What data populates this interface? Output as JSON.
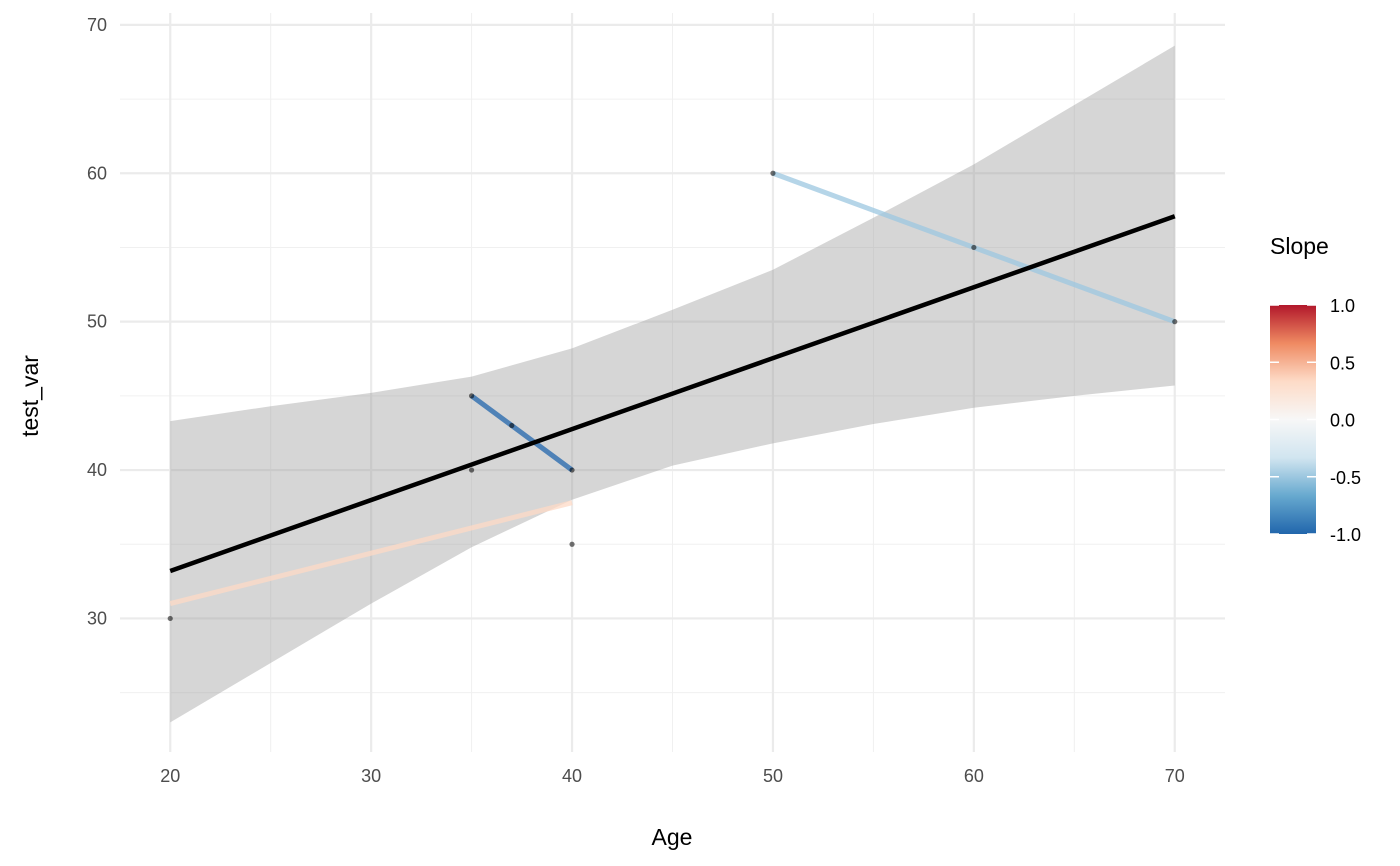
{
  "chart_data": {
    "type": "scatter",
    "xlabel": "Age",
    "ylabel": "test_var",
    "xlim": [
      17.5,
      72.5
    ],
    "ylim": [
      21,
      70.8
    ],
    "x_ticks": [
      20,
      30,
      40,
      50,
      60,
      70
    ],
    "y_ticks": [
      30,
      40,
      50,
      60,
      70
    ],
    "grid": true,
    "points": [
      {
        "x": 20,
        "y": 30
      },
      {
        "x": 35,
        "y": 45
      },
      {
        "x": 35,
        "y": 40
      },
      {
        "x": 37,
        "y": 43
      },
      {
        "x": 40,
        "y": 40
      },
      {
        "x": 40,
        "y": 35
      },
      {
        "x": 50,
        "y": 60
      },
      {
        "x": 60,
        "y": 55
      },
      {
        "x": 70,
        "y": 50
      }
    ],
    "group_lines": [
      {
        "x": [
          20,
          40
        ],
        "y": [
          31.0,
          37.8
        ],
        "slope": 0.34
      },
      {
        "x": [
          35,
          40
        ],
        "y": [
          45,
          40
        ],
        "slope": -1.0
      },
      {
        "x": [
          50,
          70
        ],
        "y": [
          60,
          50
        ],
        "slope": -0.5
      }
    ],
    "overall_fit": {
      "x": [
        20,
        70
      ],
      "y": [
        33.2,
        57.1
      ],
      "ci_x": [
        20,
        25,
        30,
        35,
        40,
        45,
        50,
        55,
        60,
        65,
        70
      ],
      "ci_lower": [
        23.0,
        27.0,
        31.0,
        34.8,
        38.0,
        40.3,
        41.8,
        43.1,
        44.2,
        45.0,
        45.7
      ],
      "ci_upper": [
        43.3,
        44.3,
        45.2,
        46.3,
        48.2,
        50.8,
        53.5,
        57.0,
        60.6,
        64.6,
        68.6
      ]
    },
    "legend": {
      "title": "Slope",
      "position": "right",
      "range": [
        -1.0,
        1.0
      ],
      "ticks": [
        "1.0",
        "0.5",
        "0.0",
        "-0.5",
        "-1.0"
      ],
      "tick_values": [
        1.0,
        0.5,
        0.0,
        -0.5,
        -1.0
      ],
      "palette": [
        "#2166ac",
        "#67a9cf",
        "#d1e5f0",
        "#f7f7f7",
        "#fddbc7",
        "#ef8a62",
        "#b2182b"
      ]
    }
  }
}
